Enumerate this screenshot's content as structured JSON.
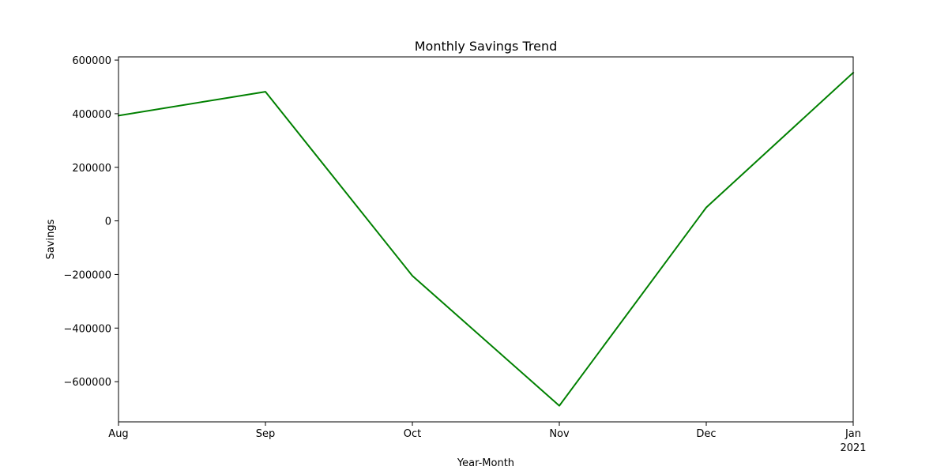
{
  "chart_data": {
    "type": "line",
    "title": "Monthly Savings Trend",
    "xlabel": "Year-Month",
    "ylabel": "Savings",
    "categories": [
      "Aug",
      "Sep",
      "Oct",
      "Nov",
      "Dec",
      "Jan"
    ],
    "category_sublabels": [
      "",
      "",
      "",
      "",
      "",
      "2021"
    ],
    "series": [
      {
        "values": [
          393000,
          482000,
          -205000,
          -690000,
          50000,
          553000
        ],
        "color": "#008000"
      }
    ],
    "ylim": [
      -750000,
      612000
    ],
    "yticks": [
      -600000,
      -400000,
      -200000,
      0,
      200000,
      400000,
      600000
    ],
    "ytick_labels": [
      "−600000",
      "−400000",
      "−200000",
      "0",
      "200000",
      "400000",
      "600000"
    ],
    "grid": false,
    "legend": "none"
  }
}
